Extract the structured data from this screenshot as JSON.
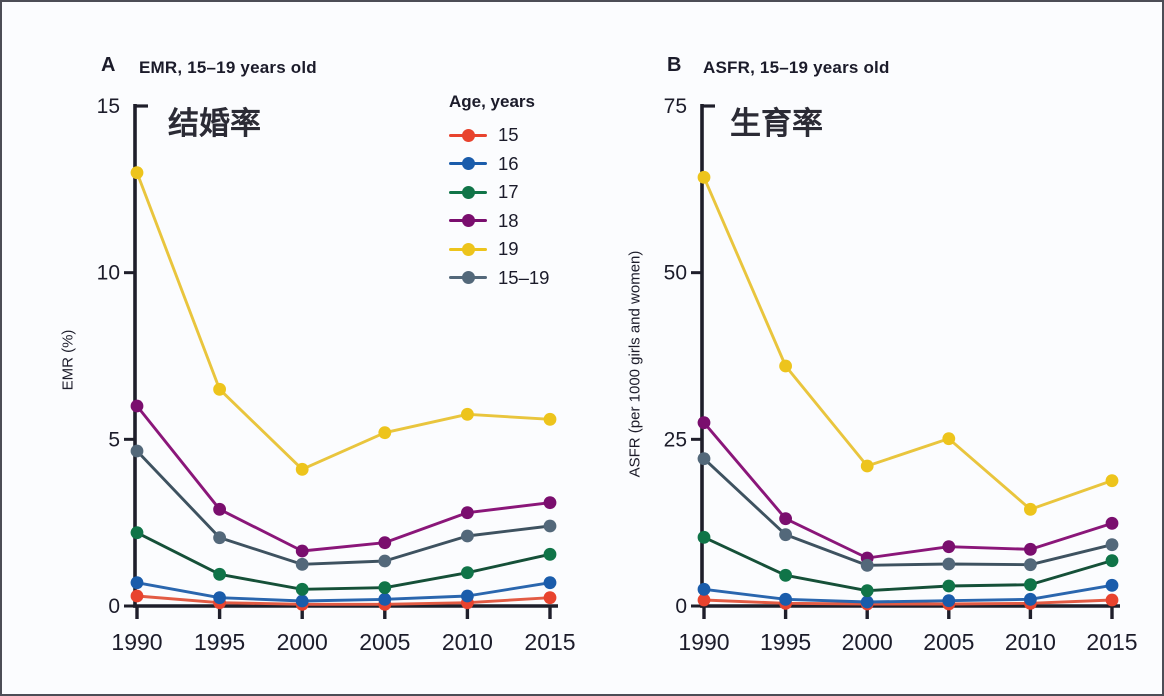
{
  "figure": {
    "background": "#fbfcfe",
    "axis_color": "#1e1e2a",
    "text_color": "#1b1b2a"
  },
  "legend": {
    "title": "Age, years",
    "items": [
      {
        "label": "15",
        "color": "#e8432e"
      },
      {
        "label": "16",
        "color": "#1a5cab"
      },
      {
        "label": "17",
        "color": "#107448"
      },
      {
        "label": "18",
        "color": "#7a0e6e"
      },
      {
        "label": "19",
        "color": "#edc41c"
      },
      {
        "label": "15–19",
        "color": "#53687a"
      }
    ]
  },
  "chart_data": [
    {
      "type": "line",
      "panel_letter": "A",
      "title": "EMR, 15–19 years old",
      "annotation": "结婚率",
      "ylabel": "EMR (%)",
      "xlabel": "",
      "x": [
        1990,
        1995,
        2000,
        2005,
        2010,
        2015
      ],
      "yticks": [
        0,
        5,
        10,
        15
      ],
      "ylim": [
        0,
        15
      ],
      "grid": false,
      "legend_position": "top-right-of-panel",
      "series": [
        {
          "name": "15",
          "color": "#e8432e",
          "line_color": "#e25b44",
          "values": [
            0.3,
            0.1,
            0.05,
            0.05,
            0.1,
            0.25
          ]
        },
        {
          "name": "16",
          "color": "#1a5cab",
          "line_color": "#2a66ae",
          "values": [
            0.7,
            0.25,
            0.15,
            0.2,
            0.3,
            0.7
          ]
        },
        {
          "name": "17",
          "color": "#107448",
          "line_color": "#155038",
          "values": [
            2.2,
            0.95,
            0.5,
            0.55,
            1.0,
            1.55
          ]
        },
        {
          "name": "18",
          "color": "#7a0e6e",
          "line_color": "#8a1679",
          "values": [
            6.0,
            2.9,
            1.65,
            1.9,
            2.8,
            3.1
          ]
        },
        {
          "name": "19",
          "color": "#edc41c",
          "line_color": "#e9c53d",
          "values": [
            13.0,
            6.5,
            4.1,
            5.2,
            5.75,
            5.6
          ]
        },
        {
          "name": "15–19",
          "color": "#53687a",
          "line_color": "#3e5260",
          "values": [
            4.65,
            2.05,
            1.25,
            1.35,
            2.1,
            2.4
          ]
        }
      ]
    },
    {
      "type": "line",
      "panel_letter": "B",
      "title": "ASFR, 15–19 years old",
      "annotation": "生育率",
      "ylabel": "ASFR (per 1000 girls and women)",
      "xlabel": "",
      "x": [
        1990,
        1995,
        2000,
        2005,
        2010,
        2015
      ],
      "yticks": [
        0,
        25,
        50,
        75
      ],
      "ylim": [
        0,
        75
      ],
      "grid": false,
      "series": [
        {
          "name": "15",
          "color": "#e8432e",
          "line_color": "#e25b44",
          "values": [
            0.9,
            0.4,
            0.3,
            0.3,
            0.4,
            0.9
          ]
        },
        {
          "name": "16",
          "color": "#1a5cab",
          "line_color": "#2a66ae",
          "values": [
            2.5,
            1.0,
            0.6,
            0.8,
            1.0,
            3.1
          ]
        },
        {
          "name": "17",
          "color": "#107448",
          "line_color": "#155038",
          "values": [
            10.3,
            4.6,
            2.3,
            3.0,
            3.2,
            6.8
          ]
        },
        {
          "name": "18",
          "color": "#7a0e6e",
          "line_color": "#8a1679",
          "values": [
            27.5,
            13.1,
            7.2,
            8.9,
            8.5,
            12.4
          ]
        },
        {
          "name": "19",
          "color": "#edc41c",
          "line_color": "#e9c53d",
          "values": [
            64.3,
            36.0,
            21.0,
            25.1,
            14.5,
            18.8
          ]
        },
        {
          "name": "15–19",
          "color": "#53687a",
          "line_color": "#3e5260",
          "values": [
            22.1,
            10.7,
            6.1,
            6.3,
            6.2,
            9.2
          ]
        }
      ]
    }
  ]
}
